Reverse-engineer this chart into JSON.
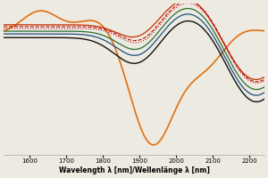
{
  "xlim": [
    1530,
    2240
  ],
  "ylim": [
    -0.6,
    1.05
  ],
  "xlabel": "Wavelength λ [nm]/Wellenlänge λ [nm]",
  "xticks": [
    1600,
    1700,
    1800,
    1900,
    2000,
    2100,
    2200
  ],
  "background_color": "#edeae2",
  "grid_color": "#ffffff",
  "lines": [
    {
      "color": "#c03000",
      "lw": 0.9,
      "ls": "-"
    },
    {
      "color": "#c01010",
      "lw": 0.8,
      "ls": "--"
    },
    {
      "color": "#c01010",
      "lw": 0.8,
      "ls": "dotted"
    },
    {
      "color": "#2a7030",
      "lw": 0.9,
      "ls": "-"
    },
    {
      "color": "#1a5080",
      "lw": 0.9,
      "ls": "-"
    },
    {
      "color": "#111111",
      "lw": 1.0,
      "ls": "-"
    },
    {
      "color": "#e07010",
      "lw": 1.2,
      "ls": "-"
    }
  ]
}
